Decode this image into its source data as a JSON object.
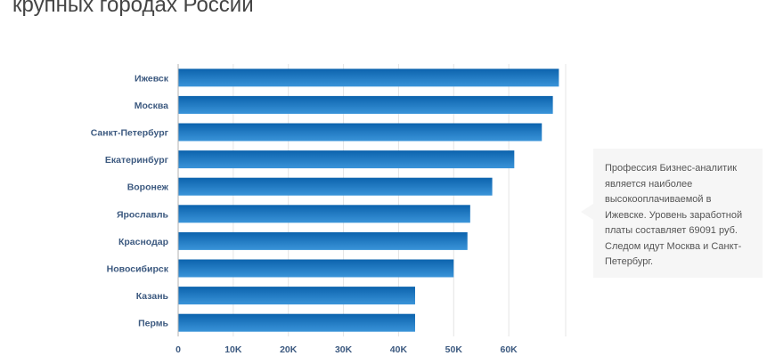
{
  "chart_data": {
    "type": "bar",
    "orientation": "horizontal",
    "title": "крупных городах России",
    "categories": [
      "Ижевск",
      "Москва",
      "Санкт-Петербург",
      "Екатеринбург",
      "Воронеж",
      "Ярославль",
      "Краснодар",
      "Новосибирск",
      "Казань",
      "Пермь"
    ],
    "values": [
      69091,
      68000,
      66000,
      61000,
      57000,
      53000,
      52500,
      50000,
      43000,
      43000
    ],
    "xlim": [
      0,
      70000
    ],
    "xticks": [
      0,
      10000,
      20000,
      30000,
      40000,
      50000,
      60000
    ],
    "xtick_labels": [
      "0",
      "10K",
      "20K",
      "30K",
      "40K",
      "50K",
      "60K"
    ],
    "grid": true,
    "legend": "none"
  },
  "colors": {
    "bar_top": "#0c63ad",
    "bar_bottom": "#3a94d9",
    "category_label": "#3d5a80",
    "tick_label": "#3d5a80",
    "grid": "#e4e4e4",
    "axis": "#b0b0b0"
  },
  "callout": {
    "text": "Профессия Бизнес-аналитик является наиболее высокооплачиваемой в Ижевске. Уровень заработной платы составляет 69091 руб. Следом идут Москва и Санкт-Петербург."
  }
}
